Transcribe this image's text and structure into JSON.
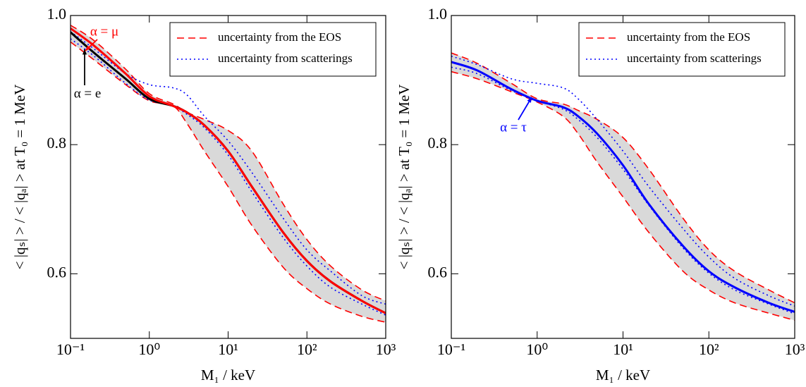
{
  "chart_data": [
    {
      "type": "line",
      "xscale": "log",
      "x": [
        0.1,
        0.2,
        0.5,
        1,
        2,
        3,
        5,
        10,
        20,
        50,
        100,
        200,
        500,
        1000
      ],
      "xlim": [
        0.1,
        1000
      ],
      "xticks": [
        {
          "value": 0.1,
          "label": "10⁻¹"
        },
        {
          "value": 1,
          "label": "10⁰"
        },
        {
          "value": 10,
          "label": "10¹"
        },
        {
          "value": 100,
          "label": "10²"
        },
        {
          "value": 1000,
          "label": "10³"
        }
      ],
      "ylim": [
        0.5,
        1.0
      ],
      "yticks": [
        0.6,
        0.8,
        {
          "value": 1,
          "label": "1.0"
        }
      ],
      "xlabel": "M₁ / keV",
      "ylabel": "< |qₛ| > / < |qₐ| > at T₀ = 1 MeV",
      "legend": "upper right",
      "series": [
        {
          "name": "uncertainty from the EOS",
          "color": "#ff0000",
          "style": "dashed",
          "fill": "#d9d9d9",
          "upper": [
            0.985,
            0.961,
            0.917,
            0.879,
            0.863,
            0.85,
            0.839,
            0.822,
            0.79,
            0.708,
            0.653,
            0.612,
            0.575,
            0.558
          ],
          "lower": [
            0.959,
            0.931,
            0.893,
            0.868,
            0.86,
            0.833,
            0.79,
            0.735,
            0.675,
            0.61,
            0.577,
            0.553,
            0.534,
            0.525
          ]
        },
        {
          "name": "uncertainty from scatterings",
          "color": "#0000ff",
          "style": "dotted",
          "upper": [
            0.975,
            0.948,
            0.91,
            0.893,
            0.888,
            0.877,
            0.844,
            0.806,
            0.757,
            0.686,
            0.637,
            0.604,
            0.566,
            0.553
          ],
          "lower": [
            0.964,
            0.937,
            0.895,
            0.869,
            0.86,
            0.847,
            0.826,
            0.784,
            0.727,
            0.656,
            0.612,
            0.579,
            0.553,
            0.536
          ]
        },
        {
          "name": "α = e",
          "color": "#000000",
          "style": "solid",
          "values": [
            0.974,
            0.942,
            0.902,
            0.871,
            0.86,
            0.85,
            0.83,
            0.79,
            0.735,
            0.664,
            0.62,
            0.588,
            0.558,
            0.539
          ]
        },
        {
          "name": "α = μ",
          "color": "#ff0000",
          "style": "solid",
          "values": [
            0.98,
            0.953,
            0.91,
            0.875,
            0.86,
            0.85,
            0.83,
            0.79,
            0.735,
            0.664,
            0.62,
            0.588,
            0.558,
            0.539
          ]
        }
      ]
    },
    {
      "type": "line",
      "xscale": "log",
      "x": [
        0.1,
        0.2,
        0.5,
        1,
        2,
        3,
        5,
        10,
        20,
        50,
        100,
        200,
        500,
        1000
      ],
      "xlim": [
        0.1,
        1000
      ],
      "xticks": [
        {
          "value": 0.1,
          "label": "10⁻¹"
        },
        {
          "value": 1,
          "label": "10⁰"
        },
        {
          "value": 10,
          "label": "10¹"
        },
        {
          "value": 100,
          "label": "10²"
        },
        {
          "value": 1000,
          "label": "10³"
        }
      ],
      "ylim": [
        0.5,
        1.0
      ],
      "yticks": [
        0.6,
        0.8,
        {
          "value": 1,
          "label": "1.0"
        }
      ],
      "xlabel": "M₁ / keV",
      "ylabel": "< |qₛ| > / < |qₐ| > at T₀ = 1 MeV",
      "legend": "upper right",
      "series": [
        {
          "name": "uncertainty from the EOS",
          "color": "#ff0000",
          "style": "dashed",
          "fill": "#d9d9d9",
          "upper": [
            0.942,
            0.926,
            0.895,
            0.871,
            0.863,
            0.853,
            0.839,
            0.811,
            0.762,
            0.686,
            0.637,
            0.604,
            0.575,
            0.555
          ],
          "lower": [
            0.913,
            0.902,
            0.882,
            0.866,
            0.844,
            0.817,
            0.773,
            0.719,
            0.664,
            0.604,
            0.575,
            0.555,
            0.539,
            0.528
          ]
        },
        {
          "name": "uncertainty from scatterings",
          "color": "#0000ff",
          "style": "dotted",
          "upper": [
            0.937,
            0.924,
            0.902,
            0.895,
            0.888,
            0.871,
            0.839,
            0.79,
            0.735,
            0.67,
            0.626,
            0.593,
            0.566,
            0.55
          ],
          "lower": [
            0.92,
            0.91,
            0.884,
            0.868,
            0.855,
            0.839,
            0.811,
            0.762,
            0.706,
            0.64,
            0.601,
            0.575,
            0.553,
            0.538
          ]
        },
        {
          "name": "α = τ",
          "color": "#0000ff",
          "style": "solid",
          "values": [
            0.928,
            0.915,
            0.886,
            0.868,
            0.858,
            0.844,
            0.817,
            0.768,
            0.708,
            0.643,
            0.604,
            0.579,
            0.555,
            0.541
          ]
        }
      ]
    }
  ]
}
